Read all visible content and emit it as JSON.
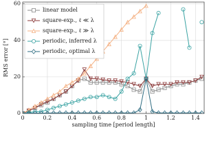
{
  "chart_data": {
    "type": "line",
    "x_label": "sampling time [period length]",
    "y_label": "RMS error [°]",
    "x": [
      0,
      0.05,
      0.1,
      0.15,
      0.2,
      0.25,
      0.3,
      0.35,
      0.4,
      0.45,
      0.5,
      0.55,
      0.6,
      0.65,
      0.7,
      0.75,
      0.8,
      0.85,
      0.9,
      0.95,
      1.0,
      1.05,
      1.1,
      1.15,
      1.2,
      1.25,
      1.3,
      1.35,
      1.4,
      1.45
    ],
    "series": [
      {
        "name": "linear model",
        "color": "#8c8c8c",
        "marker": "square",
        "values": [
          0,
          1.5,
          3,
          4.5,
          6,
          8,
          10,
          12,
          15,
          18,
          19,
          17,
          17,
          17,
          17,
          17,
          16,
          15,
          13,
          12,
          19,
          12,
          13,
          14,
          15,
          16,
          16,
          17,
          18,
          19
        ]
      },
      {
        "name": "square-exp., ℓ ≪ λ",
        "color": "#8b3a3a",
        "marker": "triangle-down",
        "values": [
          0,
          1.5,
          3,
          5,
          6.5,
          8,
          10,
          12,
          15,
          18,
          24,
          19,
          19,
          18.5,
          18,
          18,
          17.5,
          17,
          16,
          15,
          19,
          15,
          16,
          16,
          16,
          17,
          17,
          17,
          18,
          20
        ]
      },
      {
        "name": "square-exp., ℓ ≫ λ",
        "color": "#f4b183",
        "marker": "triangle-up",
        "values": [
          0,
          2,
          4,
          6,
          8,
          10,
          12,
          15,
          17,
          19,
          22,
          26,
          30,
          34,
          38,
          42,
          46,
          50,
          53,
          56,
          59,
          null,
          null,
          null,
          null,
          null,
          null,
          null,
          null,
          null
        ]
      },
      {
        "name": "periodic, inferred λ",
        "color": "#3aa3a3",
        "marker": "circle",
        "values": [
          0,
          0.5,
          1,
          1,
          2,
          3,
          4,
          5,
          6,
          7,
          8,
          9,
          9,
          10,
          9,
          8,
          12,
          19,
          22,
          37,
          19,
          44,
          55,
          null,
          null,
          null,
          57,
          36,
          null,
          50
        ]
      },
      {
        "name": "periodic, optimal λ",
        "color": "#2e6b80",
        "marker": "diamond",
        "values": [
          0,
          0.2,
          0.2,
          0.2,
          0.2,
          0.3,
          0.3,
          0.3,
          0.3,
          0.3,
          0.3,
          0.3,
          0.3,
          0.3,
          0.3,
          0.3,
          0.3,
          0.3,
          0.3,
          2,
          19,
          1,
          0.3,
          0.3,
          0.3,
          0.3,
          0.3,
          0.3,
          0.3,
          0.3
        ]
      }
    ],
    "xlim": [
      0,
      1.47
    ],
    "xticks": [
      0,
      0.2,
      0.4,
      0.6,
      0.8,
      1,
      1.2,
      1.4
    ],
    "ylim": [
      0,
      61
    ],
    "yticks": [
      0,
      20,
      40,
      60
    ],
    "grid": true,
    "legend": "upper-left"
  }
}
